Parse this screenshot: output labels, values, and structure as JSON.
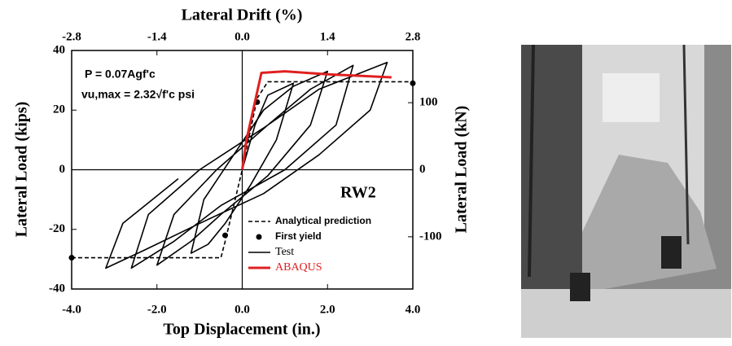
{
  "chart_data": {
    "type": "line",
    "title": "Lateral Drift (%)",
    "x_label": "Top Displacement (in.)",
    "y_label": "Lateral Load (kips)",
    "y2_label": "Lateral Load (kN)",
    "annotations": [
      "P = 0.07Agf'c",
      "vu,max = 2.32√f'c psi",
      "RW2"
    ],
    "xlim": [
      -4,
      4
    ],
    "xticks": [
      {
        "value": -4,
        "label": "-4.0"
      },
      {
        "value": -2,
        "label": "-2.0"
      },
      {
        "value": 0,
        "label": "0.0"
      },
      {
        "value": 2,
        "label": "2.0"
      },
      {
        "value": 4,
        "label": "4.0"
      }
    ],
    "x2lim": [
      -2.8,
      2.8
    ],
    "x2ticks": [
      -2.8,
      -1.4,
      {
        "value": 0,
        "label": "0.0"
      },
      1.4,
      2.8
    ],
    "ylim": [
      -40,
      40
    ],
    "yticks": [
      40,
      20,
      0,
      -20,
      -40
    ],
    "y2lim": [
      -177.9,
      177.9
    ],
    "y2ticks": [
      100,
      0,
      -100
    ],
    "series": [
      {
        "name": "Analytical prediction",
        "color": "#000000",
        "line_style": "dashed",
        "x": [
          -4,
          -0.5,
          -0.4,
          0,
          0.35,
          0.6,
          4
        ],
        "values": [
          -29.5,
          -29.5,
          -24,
          0,
          24,
          29.5,
          29.5
        ]
      },
      {
        "name": "First yield",
        "color": "#000000",
        "line_style": "markers",
        "x": [
          -4,
          -0.4,
          0.35,
          4
        ],
        "values": [
          -29.5,
          -22,
          22.7,
          29
        ]
      },
      {
        "name": "Test",
        "color": "#000000",
        "line_style": "solid",
        "x": [
          0,
          0.3,
          0.6,
          1.2,
          0.8,
          0.2,
          -0.4,
          -0.8,
          -1.2,
          -0.9,
          -0.2,
          0.5,
          1.2,
          2.0,
          1.6,
          0.6,
          -0.5,
          -1.2,
          -2.0,
          -1.6,
          -0.6,
          0.6,
          1.6,
          2.6,
          2.2,
          1.0,
          -0.5,
          -1.6,
          -2.6,
          -2.2,
          -1.0,
          0.5,
          1.8,
          3.4,
          3.0,
          1.8,
          0.5,
          -1.0,
          -2.3,
          -3.2,
          -2.8,
          -1.5
        ],
        "values": [
          0,
          15,
          25,
          29,
          10,
          -5,
          -18,
          -25,
          -28,
          -10,
          5,
          20,
          28,
          33,
          15,
          -2,
          -15,
          -24,
          -32,
          -15,
          0,
          15,
          27,
          35,
          15,
          0,
          -12,
          -24,
          -33,
          -15,
          0,
          14,
          27,
          36,
          20,
          5,
          -8,
          -18,
          -27,
          -33,
          -18,
          -3
        ]
      },
      {
        "name": "ABAQUS",
        "color": "#e02020",
        "line_style": "solid",
        "x": [
          0,
          0.1,
          0.45,
          1.0,
          2.0,
          3.5
        ],
        "values": [
          0,
          10,
          32.5,
          33,
          32,
          31
        ]
      }
    ]
  }
}
